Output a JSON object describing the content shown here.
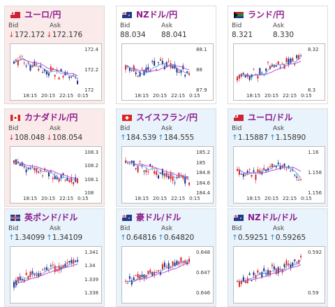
{
  "labels": {
    "bid": "Bid",
    "ask": "Ask"
  },
  "colors": {
    "purple_ma": "#c24bd4",
    "blue_ma": "#3a9ad9",
    "up_candle": "#e02020",
    "down_candle": "#1a2a8a",
    "title": "#8b1a8b",
    "down_arrow": "#d23a3a",
    "up_arrow": "#2a8fc4"
  },
  "cards": [
    {
      "pair": "ユーロ/円",
      "flag": "eu-flag-icon",
      "direction": "down",
      "arrow": "↓",
      "bid": "172.172",
      "ask": "172.176",
      "yticks": [
        "172.4",
        "172.2",
        "172"
      ],
      "xticks": [
        "18:15",
        "20:15",
        "22:15",
        "0:15"
      ],
      "trend": "down"
    },
    {
      "pair": "NZドル/円",
      "flag": "nz-flag-icon",
      "direction": "neutral",
      "arrow": "",
      "bid": "88.034",
      "ask": "88.041",
      "yticks": [
        "88.1",
        "88",
        "87.9"
      ],
      "xticks": [
        "18:15",
        "20:15",
        "22:15",
        "0:15"
      ],
      "trend": "flat"
    },
    {
      "pair": "ランド/円",
      "flag": "za-flag-icon",
      "direction": "neutral",
      "arrow": "",
      "bid": "8.321",
      "ask": "8.330",
      "yticks": [
        "8.32",
        "8.3"
      ],
      "xticks": [
        "18:15",
        "20:15",
        "22:15",
        "0:15"
      ],
      "trend": "up"
    },
    {
      "pair": "カナダドル/円",
      "flag": "ca-flag-icon",
      "direction": "down",
      "arrow": "↓",
      "bid": "108.048",
      "ask": "108.054",
      "yticks": [
        "108.3",
        "108.2",
        "108.1",
        "108"
      ],
      "xticks": [
        "18:15",
        "20:15",
        "22:15",
        "0:15"
      ],
      "trend": "down"
    },
    {
      "pair": "スイスフラン/円",
      "flag": "ch-flag-icon",
      "direction": "up",
      "arrow": "↑",
      "bid": "184.539",
      "ask": "184.555",
      "yticks": [
        "185.2",
        "185",
        "184.8",
        "184.6",
        "184.4"
      ],
      "xticks": [
        "18:15",
        "20:15",
        "22:15",
        "0:15"
      ],
      "trend": "down"
    },
    {
      "pair": "ユーロ/ドル",
      "flag": "eu-flag-icon",
      "direction": "up",
      "arrow": "↑",
      "bid": "1.15887",
      "ask": "1.15890",
      "yticks": [
        "1.16",
        "1.158",
        "1.156"
      ],
      "xticks": [
        "18:15",
        "20:15",
        "22:15",
        "0:15"
      ],
      "trend": "flat"
    },
    {
      "pair": "英ポンド/ドル",
      "flag": "gb-flag-icon",
      "direction": "up",
      "arrow": "↑",
      "bid": "1.34099",
      "ask": "1.34109",
      "yticks": [
        "1.341",
        "1.34",
        "1.339",
        "1.338"
      ],
      "xticks": [],
      "trend": "up"
    },
    {
      "pair": "豪ドル/ドル",
      "flag": "au-flag-icon",
      "direction": "up",
      "arrow": "↑",
      "bid": "0.64816",
      "ask": "0.64820",
      "yticks": [
        "0.648",
        "0.647",
        "0.646"
      ],
      "xticks": [],
      "trend": "up"
    },
    {
      "pair": "NZドル/ドル",
      "flag": "nz-flag-icon",
      "direction": "up",
      "arrow": "↑",
      "bid": "0.59251",
      "ask": "0.59265",
      "yticks": [
        "0.592",
        "0.59"
      ],
      "xticks": [],
      "trend": "up"
    }
  ]
}
